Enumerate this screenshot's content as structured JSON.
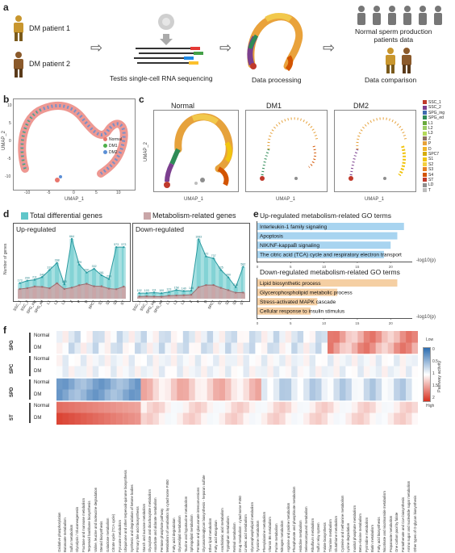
{
  "panel_a": {
    "label": "a",
    "patient1": "DM patient 1",
    "patient2": "DM patient 2",
    "sequencing": "Testis single-cell RNA sequencing",
    "processing": "Data processing",
    "normal_data": "Normal sperm production\npatients data",
    "comparison": "Data comparison"
  },
  "panel_b": {
    "label": "b",
    "xlabel": "UMAP_1",
    "ylabel": "UMAP_2",
    "xticks": [
      "-10",
      "-5",
      "0",
      "5",
      "10"
    ],
    "yticks": [
      "10",
      "5",
      "0",
      "-5",
      "-10"
    ],
    "legend": [
      {
        "name": "Normal",
        "color": "#e8766d"
      },
      {
        "name": "DM1",
        "color": "#4daf4a"
      },
      {
        "name": "DM2",
        "color": "#5b8fd6"
      }
    ]
  },
  "panel_c": {
    "label": "c",
    "titles": [
      "Normal",
      "DM1",
      "DM2"
    ],
    "xlabel": "UMAP_1",
    "ylabel": "UMAP_2",
    "legend": [
      {
        "name": "SSC_1",
        "color": "#c0392b"
      },
      {
        "name": "SSC_2",
        "color": "#7b3f8f"
      },
      {
        "name": "SPG_ing",
        "color": "#3f6bb0"
      },
      {
        "name": "SPG_ed",
        "color": "#2e8b57"
      },
      {
        "name": "L1",
        "color": "#6aaa3d"
      },
      {
        "name": "L2",
        "color": "#9ccc65"
      },
      {
        "name": "L3",
        "color": "#b5d95a"
      },
      {
        "name": "Z",
        "color": "#8d6e63"
      },
      {
        "name": "P",
        "color": "#e6a23c"
      },
      {
        "name": "D",
        "color": "#f0b429"
      },
      {
        "name": "SPC7",
        "color": "#d4ac0d"
      },
      {
        "name": "S1",
        "color": "#f1c40f"
      },
      {
        "name": "S2",
        "color": "#f4d03f"
      },
      {
        "name": "S3",
        "color": "#e67e22"
      },
      {
        "name": "S4",
        "color": "#d35400"
      },
      {
        "name": "ST",
        "color": "#c0392b"
      },
      {
        "name": "LD",
        "color": "#8e8e8e"
      },
      {
        "name": "T",
        "color": "#bdbdbd"
      }
    ]
  },
  "panel_d": {
    "label": "d",
    "legend_total": "Total differential genes",
    "legend_metab": "Metabolism-related genes",
    "color_total": "#5fc6c9",
    "color_metab": "#c9a6a8",
    "ylabel": "Number of genes",
    "up_title": "Up-regulated",
    "down_title": "Down-regulated",
    "categories": [
      "SSC_1",
      "SSC_2",
      "SPG_ing",
      "SPG_ed",
      "L1",
      "L2",
      "L3",
      "Z",
      "P",
      "D",
      "SPC7",
      "S1",
      "S2",
      "S3",
      "ST"
    ],
    "up_total": [
      173,
      200,
      211,
      240,
      319,
      398,
      160,
      664,
      379,
      290,
      332,
      261,
      219,
      573,
      573
    ],
    "up_total_labels": [
      "173",
      "200",
      "211",
      "240",
      "319",
      "398",
      "160",
      "664",
      "379",
      "290",
      "332",
      "261",
      "219",
      "573",
      "573"
    ],
    "up_metab": [
      108,
      117,
      136,
      132,
      116,
      172,
      108,
      123,
      150,
      166,
      138,
      138,
      112,
      106,
      135
    ],
    "down_total": [
      102,
      103,
      111,
      100,
      123,
      158,
      140,
      146,
      1083,
      772,
      737,
      525,
      390,
      210,
      582
    ],
    "down_total_labels": [
      "102",
      "103",
      "111",
      "100",
      "123",
      "158",
      "140",
      "146",
      "1083",
      "772",
      "737",
      "525",
      "390",
      "210",
      "582"
    ],
    "down_metab": [
      39,
      45,
      40,
      37,
      56,
      60,
      64,
      71,
      211,
      248,
      249,
      198,
      156,
      110,
      112
    ]
  },
  "panel_e": {
    "label": "e",
    "up_title": "Up-regulated metabolism-related GO terms",
    "up_terms": [
      {
        "name": "Interleukin-1 family signaling",
        "value": 22
      },
      {
        "name": "Apoptosis",
        "value": 21
      },
      {
        "name": "NIK/NF-kappaB signaling",
        "value": 20
      },
      {
        "name": "The citric acid (TCA) cycle and respiratory electron transport",
        "value": 19
      }
    ],
    "up_color": "#a8d4f0",
    "down_title": "Down-regulated metabolism-related GO terms",
    "down_terms": [
      {
        "name": "Lipid biosynthetic process",
        "value": 21
      },
      {
        "name": "Glycerophospholipid metabolic process",
        "value": 12
      },
      {
        "name": "Stress-activated MAPK cascade",
        "value": 9
      },
      {
        "name": "Cellular response to insulin stimulus",
        "value": 8
      }
    ],
    "down_color": "#f5cfa3",
    "axis_label": "-log10(p)",
    "ticks": [
      "0",
      "5",
      "10",
      "15",
      "20"
    ]
  },
  "panel_f": {
    "label": "f",
    "groups": [
      "SPG",
      "SPC",
      "SPD",
      "ST"
    ],
    "rows": [
      "Normal",
      "DM",
      "Normal",
      "DM",
      "Normal",
      "DM",
      "Normal",
      "DM"
    ],
    "colorbar_title": "Pathway activity",
    "colorbar_low": "Low",
    "colorbar_high": "High",
    "colorbar_ticks": [
      "0",
      "0.5",
      "1",
      "1.5",
      "2"
    ],
    "pathways": [
      "Oxidative phosphorylation",
      "Butanoate metabolism",
      "Sulfur metabolism",
      "Glycolysis / Gluconeogenesis",
      "Fructose and mannose metabolism",
      "Terpenoid backbone biosynthesis",
      "Valine, leucine and isoleucine degradation",
      "Steroid biosynthesis",
      "Galactose metabolism",
      "Citrate cycle (TCA cycle)",
      "Pyruvate metabolism",
      "Ubiquinone and other terpenoid-quinone biosynthesis",
      "Synthesis and degradation of ketone bodies",
      "Primary bile acid biosynthesis",
      "Starch and sucrose metabolism",
      "Glyoxylate and dicarboxylate metabolism",
      "Ascorbate and aldarate metabolism",
      "Pentose phosphate pathway",
      "Metabolism of xenobiotics by cytochrome P450",
      "Fatty acid degradation",
      "Glycerolipid metabolism",
      "Taurine and hypotaurine metabolism",
      "Sphingolipid metabolism",
      "Pentose and glucuronate interconversions",
      "Glycosaminoglycan biosynthesis - heparan sulfate",
      "Ether lipid metabolism",
      "Fatty acid elongation",
      "Arachidonic acid metabolism",
      "Tryptophan metabolism",
      "Retinol metabolism",
      "Drug metabolism - cytochrome P450",
      "Linoleic acid metabolism",
      "Glycerophospholipid metabolism",
      "Tyrosine metabolism",
      "Phenylalanine metabolism",
      "Vitamin B6 metabolism",
      "Purine metabolism",
      "Nitrogen metabolism",
      "Arginine and proline metabolism",
      "Phosphonate and phosphinate metabolism",
      "Histidine metabolism",
      "Selenocompound metabolism",
      "Riboflavin metabolism",
      "Sulfur relay system",
      "Folate biosynthesis",
      "Thiamine metabolism",
      "Glutathione metabolism",
      "Cysteine and methionine metabolism",
      "Lysine degradation",
      "Inositol phosphate metabolism",
      "Beta-Alanine metabolism",
      "Pyrimidine metabolism",
      "Biotin metabolism",
      "Fatty acid biosynthesis",
      "Nicotinate and nicotinamide metabolism",
      "Propanoate metabolism",
      "One carbon pool by folate",
      "Pantothenate and CoA biosynthesis",
      "Amino sugar and nucleotide sugar metabolism",
      "Other types of O-glycan biosynthesis"
    ]
  }
}
